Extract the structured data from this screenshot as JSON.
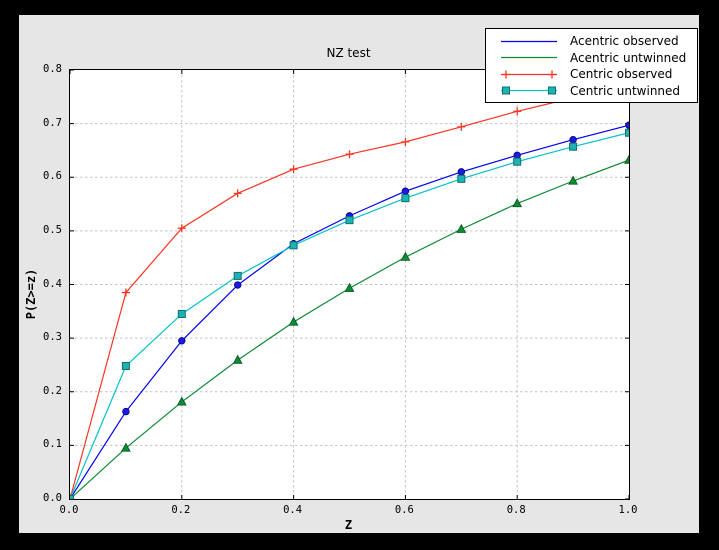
{
  "window": {
    "outer_bg": "#000000",
    "figure_bg": "#e6e6e6",
    "plot_bg": "#ffffff",
    "frame_color": "#000000",
    "grid_color": "#c3c3c3"
  },
  "chart_data": {
    "type": "line",
    "title": "NZ test",
    "xlabel": "Z",
    "ylabel": "P(Z>=z)",
    "xlim": [
      0.0,
      1.0
    ],
    "ylim": [
      0.0,
      0.8
    ],
    "xtick_labels": [
      "0.0",
      "0.2",
      "0.4",
      "0.6",
      "0.8",
      "1.0"
    ],
    "ytick_labels": [
      "0.0",
      "0.1",
      "0.2",
      "0.3",
      "0.4",
      "0.5",
      "0.6",
      "0.7",
      "0.8"
    ],
    "grid": true,
    "legend_position": "upper right",
    "x": [
      0.0,
      0.1,
      0.2,
      0.3,
      0.4,
      0.5,
      0.6,
      0.7,
      0.8,
      0.9,
      1.0
    ],
    "series": [
      {
        "name": "Acentric observed",
        "color": "#0000f0",
        "marker": "circle",
        "marker_fill": "#1a1ae0",
        "marker_edge": "#000080",
        "legend_sample_marker": false,
        "values": [
          0.0,
          0.163,
          0.295,
          0.399,
          0.476,
          0.528,
          0.574,
          0.61,
          0.641,
          0.67,
          0.697
        ]
      },
      {
        "name": "Acentric untwinned",
        "color": "#0c8a34",
        "marker": "triangle-up",
        "marker_fill": "#0c8a34",
        "marker_edge": "#05561e",
        "legend_sample_marker": false,
        "values": [
          0.0,
          0.095,
          0.181,
          0.259,
          0.33,
          0.393,
          0.451,
          0.503,
          0.551,
          0.593,
          0.632
        ]
      },
      {
        "name": "Centric observed",
        "color": "#fa3423",
        "marker": "plus",
        "marker_fill": "#fa3423",
        "marker_edge": "#fa3423",
        "legend_sample_marker": true,
        "values": [
          0.0,
          0.385,
          0.505,
          0.57,
          0.615,
          0.643,
          0.666,
          0.694,
          0.723,
          0.748,
          0.772
        ]
      },
      {
        "name": "Centric untwinned",
        "color": "#00c3c9",
        "marker": "square",
        "marker_fill": "#1db3b3",
        "marker_edge": "#0e7070",
        "legend_sample_marker": true,
        "values": [
          0.0,
          0.248,
          0.345,
          0.416,
          0.473,
          0.52,
          0.561,
          0.597,
          0.629,
          0.657,
          0.683
        ]
      }
    ]
  }
}
